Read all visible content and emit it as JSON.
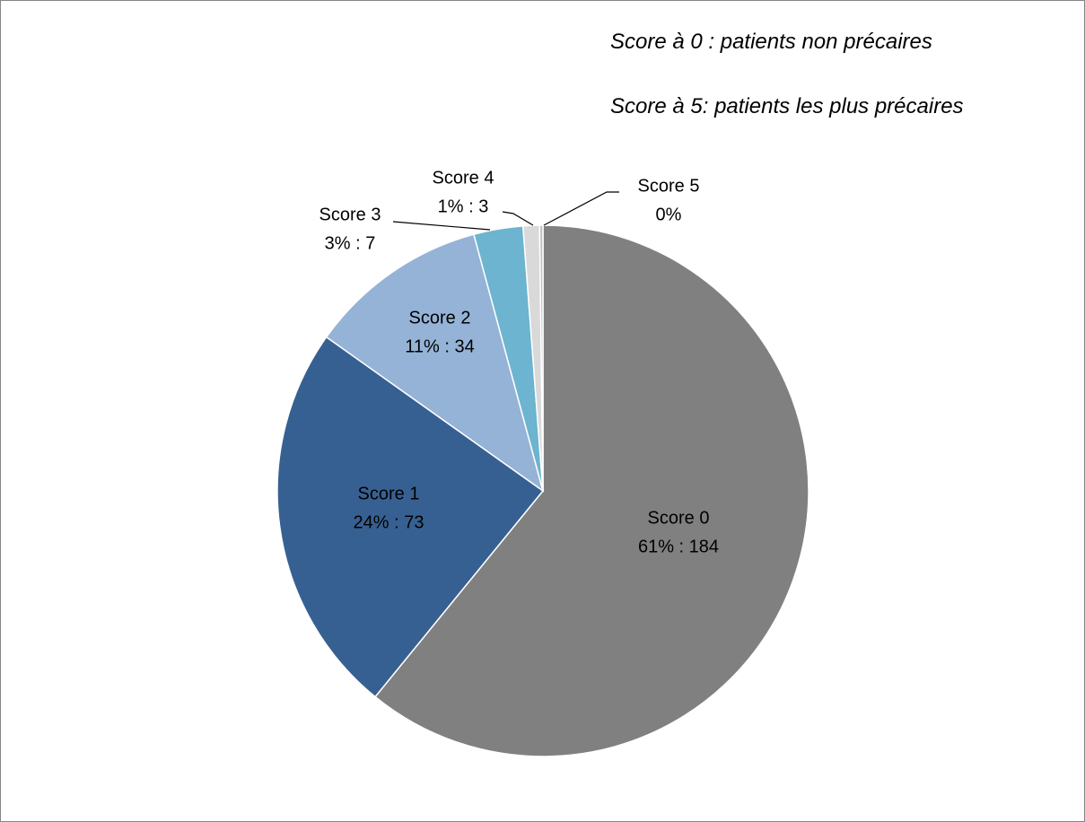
{
  "chart_data": {
    "type": "pie",
    "annotations": [
      "Score à 0 : patients non précaires",
      "Score à 5: patients les plus précaires"
    ],
    "categories": [
      "Score 0",
      "Score 1",
      "Score 2",
      "Score 3",
      "Score 4",
      "Score 5"
    ],
    "values": [
      61,
      24,
      11,
      3,
      1,
      0.2
    ],
    "value_labels": [
      "61% : 184",
      "24% : 73",
      "11% : 34",
      "3% : 7",
      "1% : 3",
      "0%"
    ],
    "colors": [
      "#808080",
      "#376092",
      "#95b3d7",
      "#6cb4cf",
      "#d9d9d9",
      "#bfbfbf"
    ]
  }
}
